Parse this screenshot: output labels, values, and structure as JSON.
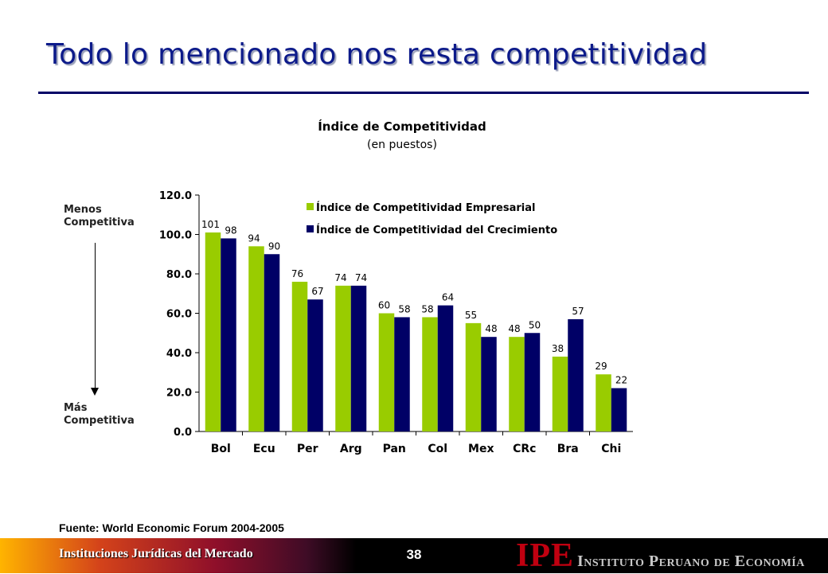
{
  "slide": {
    "title": "Todo lo mencionado nos resta competitividad",
    "source": "Fuente: World Economic Forum 2004-2005",
    "side_top": [
      "Menos",
      "Competitiva"
    ],
    "side_bottom": [
      "Más",
      "Competitiva"
    ]
  },
  "footer": {
    "left_text": "Instituciones Jurídicas del Mercado",
    "page_number": "38",
    "logo_mark": "IPE",
    "logo_text": "Instituto Peruano de Economía"
  },
  "colors": {
    "series_1": "#99cc00",
    "series_2": "#000066",
    "title": "#0c1a8a"
  },
  "chart_data": {
    "type": "bar",
    "title": "Índice de Competitividad",
    "subtitle": "(en puestos)",
    "categories": [
      "Bol",
      "Ecu",
      "Per",
      "Arg",
      "Pan",
      "Col",
      "Mex",
      "CRc",
      "Bra",
      "Chi"
    ],
    "series": [
      {
        "name": "Índice de Competitividad Empresarial",
        "values": [
          101,
          94,
          76,
          74,
          60,
          58,
          55,
          48,
          38,
          29
        ]
      },
      {
        "name": "Índice de Competitividad del Crecimiento",
        "values": [
          98,
          90,
          67,
          74,
          58,
          64,
          48,
          50,
          57,
          22
        ]
      }
    ],
    "ylim": [
      0,
      120
    ],
    "yticks": [
      "0.0",
      "20.0",
      "40.0",
      "60.0",
      "80.0",
      "100.0",
      "120.0"
    ],
    "legend": "top-right",
    "grid": false
  }
}
